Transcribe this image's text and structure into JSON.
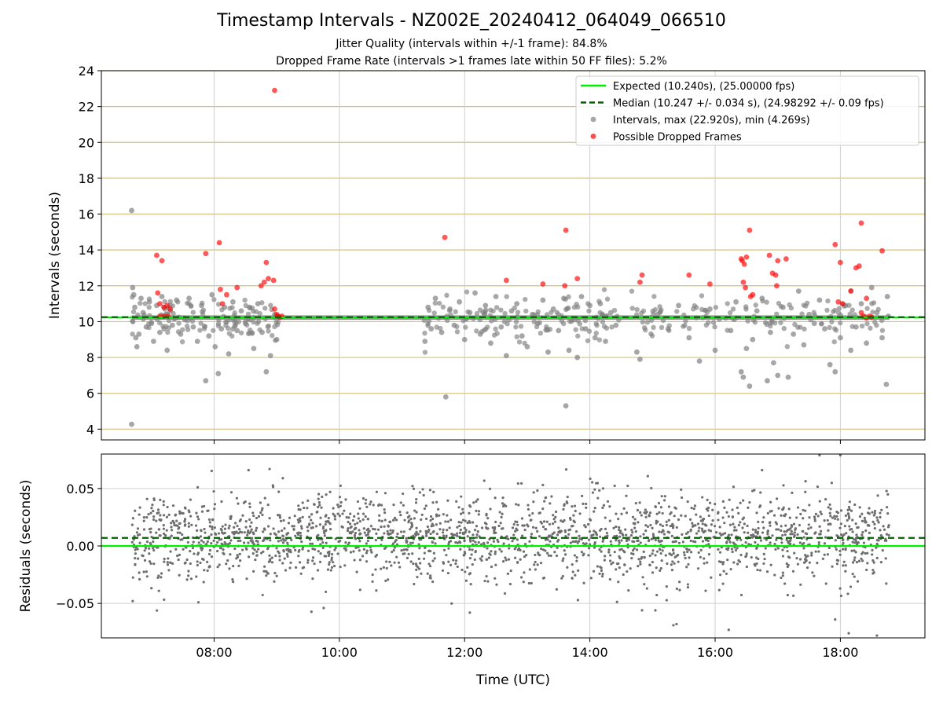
{
  "title": "Timestamp Intervals - NZ002E_20240412_064049_066510",
  "subtitle_1": "Jitter Quality (intervals within +/-1 frame): 84.8%",
  "subtitle_2": "Dropped Frame Rate (intervals >1 frames late within 50 FF files): 5.2%",
  "colors": {
    "expected": "#00ee00",
    "median": "#006400",
    "intervals": "#808080",
    "dropped": "#ff0000",
    "hgrid": "#d2c080",
    "vgrid": "#cfcfcf"
  },
  "chart_data": [
    {
      "type": "scatter",
      "panel": "top",
      "ylabel": "Intervals (seconds)",
      "ylim": [
        3.4,
        24
      ],
      "yticks": [
        4,
        6,
        8,
        10,
        12,
        14,
        16,
        18,
        20,
        22,
        24
      ],
      "ytick_labels": [
        "4",
        "6",
        "8",
        "10",
        "12",
        "14",
        "16",
        "18",
        "20",
        "22",
        "24"
      ],
      "legend_position": "upper right",
      "legend": [
        {
          "label": "Expected (10.240s), (25.00000 fps)",
          "kind": "solid-line",
          "color": "#00ee00"
        },
        {
          "label": "Median (10.247 +/- 0.034 s), (24.98292 +/- 0.09 fps)",
          "kind": "dashed-line",
          "color": "#006400"
        },
        {
          "label": "Intervals, max (22.920s), min (4.269s)",
          "kind": "marker",
          "color": "#808080"
        },
        {
          "label": "Possible Dropped Frames",
          "kind": "marker",
          "color": "#ff0000"
        }
      ],
      "expected_value": 10.24,
      "median_value": 10.247,
      "interval_band": {
        "from": "06:41",
        "to": "18:47",
        "y_low": 10.1,
        "y_high": 10.35
      },
      "series": [
        {
          "name": "Intervals, max (22.920s), min (4.269s)",
          "points": [
            [
              "06:41",
              16.2
            ],
            [
              "06:41",
              4.27
            ],
            [
              "06:42",
              11.9
            ],
            [
              "06:43",
              11.5
            ],
            [
              "06:44",
              10.8
            ],
            [
              "06:45",
              9.1
            ],
            [
              "06:46",
              8.6
            ],
            [
              "06:48",
              9.3
            ],
            [
              "06:50",
              11.3
            ],
            [
              "06:52",
              10.5
            ],
            [
              "06:55",
              9.7
            ],
            [
              "06:58",
              11.1
            ],
            [
              "07:00",
              9.9
            ],
            [
              "07:02",
              8.9
            ],
            [
              "07:05",
              10.9
            ],
            [
              "07:08",
              9.4
            ],
            [
              "07:10",
              11.4
            ],
            [
              "07:12",
              9.6
            ],
            [
              "07:15",
              8.4
            ],
            [
              "07:18",
              10.6
            ],
            [
              "07:20",
              9.8
            ],
            [
              "07:24",
              11.2
            ],
            [
              "07:28",
              9.3
            ],
            [
              "07:32",
              10.1
            ],
            [
              "07:36",
              11.3
            ],
            [
              "07:40",
              9.7
            ],
            [
              "07:44",
              8.9
            ],
            [
              "07:48",
              10.9
            ],
            [
              "07:52",
              6.7
            ],
            [
              "07:55",
              9.2
            ],
            [
              "07:58",
              11.5
            ],
            [
              "08:01",
              8.6
            ],
            [
              "08:04",
              7.1
            ],
            [
              "08:07",
              9.6
            ],
            [
              "08:10",
              10.8
            ],
            [
              "08:14",
              8.2
            ],
            [
              "08:18",
              11.1
            ],
            [
              "08:22",
              9.5
            ],
            [
              "08:26",
              10.6
            ],
            [
              "08:30",
              9.9
            ],
            [
              "08:34",
              10.8
            ],
            [
              "08:38",
              8.5
            ],
            [
              "08:42",
              11.0
            ],
            [
              "08:46",
              9.4
            ],
            [
              "08:50",
              7.2
            ],
            [
              "08:54",
              8.1
            ],
            [
              "08:58",
              10.4
            ],
            [
              "09:00",
              9.0
            ],
            [
              "11:22",
              8.9
            ],
            [
              "11:25",
              10.8
            ],
            [
              "11:28",
              9.6
            ],
            [
              "11:32",
              11.3
            ],
            [
              "11:35",
              10.2
            ],
            [
              "11:38",
              9.4
            ],
            [
              "11:42",
              5.8
            ],
            [
              "11:46",
              10.7
            ],
            [
              "11:50",
              9.8
            ],
            [
              "11:55",
              11.1
            ],
            [
              "12:00",
              9.0
            ],
            [
              "12:05",
              10.5
            ],
            [
              "12:10",
              11.6
            ],
            [
              "12:15",
              9.3
            ],
            [
              "12:20",
              10.9
            ],
            [
              "12:25",
              8.8
            ],
            [
              "12:30",
              11.4
            ],
            [
              "12:35",
              9.7
            ],
            [
              "12:40",
              8.1
            ],
            [
              "12:45",
              10.6
            ],
            [
              "12:50",
              11.0
            ],
            [
              "12:55",
              9.2
            ],
            [
              "13:00",
              8.6
            ],
            [
              "13:05",
              10.4
            ],
            [
              "13:10",
              9.9
            ],
            [
              "13:15",
              11.2
            ],
            [
              "13:20",
              8.3
            ],
            [
              "13:25",
              10.7
            ],
            [
              "13:30",
              9.5
            ],
            [
              "13:35",
              11.3
            ],
            [
              "13:37",
              5.3
            ],
            [
              "13:40",
              8.4
            ],
            [
              "13:45",
              10.1
            ],
            [
              "13:48",
              8.0
            ],
            [
              "13:52",
              11.4
            ],
            [
              "13:56",
              9.6
            ],
            [
              "14:00",
              10.9
            ],
            [
              "14:05",
              9.1
            ],
            [
              "14:10",
              11.0
            ],
            [
              "14:15",
              8.9
            ],
            [
              "14:20",
              10.5
            ],
            [
              "14:25",
              9.8
            ],
            [
              "14:45",
              8.3
            ],
            [
              "14:48",
              7.9
            ],
            [
              "15:05",
              10.4
            ],
            [
              "15:15",
              9.6
            ],
            [
              "15:25",
              10.9
            ],
            [
              "15:35",
              9.1
            ],
            [
              "15:45",
              7.8
            ],
            [
              "15:55",
              10.7
            ],
            [
              "16:00",
              8.4
            ],
            [
              "16:10",
              10.2
            ],
            [
              "16:15",
              9.5
            ],
            [
              "16:20",
              11.1
            ],
            [
              "16:25",
              7.2
            ],
            [
              "16:27",
              6.9
            ],
            [
              "16:30",
              8.5
            ],
            [
              "16:33",
              6.4
            ],
            [
              "16:36",
              9.0
            ],
            [
              "16:40",
              10.6
            ],
            [
              "16:45",
              11.3
            ],
            [
              "16:50",
              6.7
            ],
            [
              "16:53",
              9.4
            ],
            [
              "16:56",
              7.7
            ],
            [
              "17:00",
              7.0
            ],
            [
              "17:05",
              10.8
            ],
            [
              "17:10",
              6.9
            ],
            [
              "17:15",
              9.3
            ],
            [
              "17:20",
              11.7
            ],
            [
              "17:25",
              8.7
            ],
            [
              "17:30",
              10.4
            ],
            [
              "17:35",
              9.9
            ],
            [
              "17:40",
              11.2
            ],
            [
              "17:45",
              9.6
            ],
            [
              "17:50",
              7.6
            ],
            [
              "17:55",
              7.2
            ],
            [
              "18:00",
              9.1
            ],
            [
              "18:05",
              10.9
            ],
            [
              "18:10",
              8.4
            ],
            [
              "18:15",
              9.7
            ],
            [
              "18:20",
              11.0
            ],
            [
              "18:25",
              8.8
            ],
            [
              "18:30",
              11.9
            ],
            [
              "18:35",
              10.5
            ],
            [
              "18:40",
              9.1
            ],
            [
              "18:44",
              6.5
            ],
            [
              "18:45",
              11.4
            ],
            [
              "18:46",
              10.3
            ]
          ]
        },
        {
          "name": "Possible Dropped Frames",
          "points": [
            [
              "07:05",
              13.7
            ],
            [
              "07:10",
              13.4
            ],
            [
              "07:06",
              11.6
            ],
            [
              "07:08",
              11.0
            ],
            [
              "07:12",
              10.8
            ],
            [
              "07:15",
              10.9
            ],
            [
              "07:18",
              10.7
            ],
            [
              "07:08",
              10.3
            ],
            [
              "07:12",
              10.3
            ],
            [
              "07:16",
              10.3
            ],
            [
              "07:52",
              13.8
            ],
            [
              "08:05",
              14.4
            ],
            [
              "08:06",
              11.8
            ],
            [
              "08:08",
              11.0
            ],
            [
              "08:12",
              11.5
            ],
            [
              "08:22",
              11.9
            ],
            [
              "08:45",
              12.0
            ],
            [
              "08:48",
              12.2
            ],
            [
              "08:50",
              13.3
            ],
            [
              "08:52",
              12.4
            ],
            [
              "08:57",
              12.3
            ],
            [
              "08:58",
              22.9
            ],
            [
              "08:58",
              10.7
            ],
            [
              "09:00",
              10.4
            ],
            [
              "09:01",
              10.3
            ],
            [
              "09:03",
              10.25
            ],
            [
              "09:05",
              10.3
            ],
            [
              "11:41",
              14.7
            ],
            [
              "12:40",
              12.3
            ],
            [
              "13:15",
              12.1
            ],
            [
              "13:37",
              15.1
            ],
            [
              "13:36",
              12.0
            ],
            [
              "13:48",
              12.4
            ],
            [
              "14:48",
              12.2
            ],
            [
              "14:50",
              12.6
            ],
            [
              "15:35",
              12.6
            ],
            [
              "15:55",
              12.1
            ],
            [
              "16:25",
              13.5
            ],
            [
              "16:26",
              13.4
            ],
            [
              "16:28",
              13.2
            ],
            [
              "16:30",
              13.6
            ],
            [
              "16:27",
              12.2
            ],
            [
              "16:29",
              11.9
            ],
            [
              "16:33",
              15.1
            ],
            [
              "16:34",
              11.4
            ],
            [
              "16:36",
              11.5
            ],
            [
              "16:52",
              13.7
            ],
            [
              "16:55",
              12.7
            ],
            [
              "16:58",
              12.6
            ],
            [
              "17:00",
              13.4
            ],
            [
              "16:59",
              12.0
            ],
            [
              "17:08",
              13.5
            ],
            [
              "17:55",
              14.3
            ],
            [
              "18:00",
              13.3
            ],
            [
              "17:58",
              11.1
            ],
            [
              "18:02",
              11.0
            ],
            [
              "18:10",
              11.7
            ],
            [
              "18:15",
              13.0
            ],
            [
              "18:18",
              13.1
            ],
            [
              "18:20",
              15.5
            ],
            [
              "18:25",
              11.3
            ],
            [
              "18:20",
              10.5
            ],
            [
              "18:22",
              10.3
            ],
            [
              "18:25",
              10.2
            ],
            [
              "18:28",
              10.3
            ],
            [
              "18:30",
              10.25
            ],
            [
              "18:40",
              13.95
            ]
          ]
        }
      ]
    },
    {
      "type": "scatter",
      "panel": "bottom",
      "xlabel": "Time (UTC)",
      "ylabel": "Residuals (seconds)",
      "xlim": [
        "06:12",
        "19:21"
      ],
      "xticks": [
        "08:00",
        "10:00",
        "12:00",
        "14:00",
        "16:00",
        "18:00"
      ],
      "ylim": [
        -0.08,
        0.08
      ],
      "yticks": [
        -0.05,
        0.0,
        0.05
      ],
      "ytick_labels": [
        "−0.05",
        "0.00",
        "0.05"
      ],
      "expected_residual": 0.0,
      "median_residual": 0.007,
      "residuals_sample": {
        "from": "06:41",
        "to": "18:47",
        "count": 2200,
        "approx_range": [
          -0.08,
          0.08
        ],
        "outliers": [
          [
            "06:42",
            -0.048
          ],
          [
            "07:45",
            -0.049
          ],
          [
            "08:33",
            0.066
          ],
          [
            "09:45",
            -0.054
          ],
          [
            "12:05",
            -0.058
          ],
          [
            "14:50",
            -0.056
          ],
          [
            "15:20",
            -0.069
          ],
          [
            "15:23",
            -0.068
          ],
          [
            "16:13",
            -0.073
          ],
          [
            "16:45",
            0.066
          ],
          [
            "17:40",
            0.079
          ],
          [
            "18:00",
            0.079
          ],
          [
            "17:55",
            -0.064
          ],
          [
            "18:08",
            -0.076
          ],
          [
            "18:35",
            -0.078
          ]
        ]
      }
    }
  ]
}
